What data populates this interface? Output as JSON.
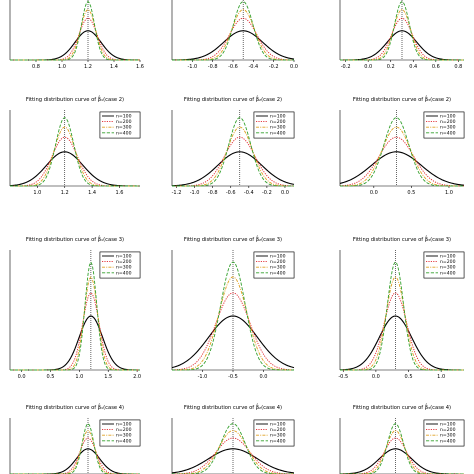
{
  "chart_data": {
    "type": "line",
    "layout": "4x3 grid of panels",
    "legend_position": "top-right",
    "grid": false,
    "rows": [
      {
        "row": 1,
        "title": "",
        "panels": [
          {
            "xlim": [
              0.6,
              1.6
            ],
            "xticks": [
              "0.8",
              "1.0",
              "1.2",
              "1.4",
              "1.6"
            ],
            "true_value": 1.2
          },
          {
            "xlim": [
              -1.2,
              0.0
            ],
            "xticks": [
              "-1.0",
              "-0.8",
              "-0.6",
              "-0.4",
              "-0.2",
              "0.0"
            ],
            "true_value": -0.5
          },
          {
            "xlim": [
              -0.25,
              0.85
            ],
            "xticks": [
              "-0.2",
              "0.0",
              "0.2",
              "0.4",
              "0.6",
              "0.8"
            ],
            "true_value": 0.3
          }
        ]
      },
      {
        "row": 2,
        "title": "Fitting distribution curve of β̂₁(case 2)",
        "titles": [
          "Fitting distribution curve of β̂₁(case 2)",
          "Fitting distribution curve of β̂₂(case 2)",
          "Fitting distribution curve of β̂₃(case 2)"
        ],
        "panels": [
          {
            "xlim": [
              0.8,
              1.75
            ],
            "xticks": [
              "1.0",
              "1.2",
              "1.4",
              "1.6"
            ],
            "true_value": 1.2
          },
          {
            "xlim": [
              -1.25,
              0.1
            ],
            "xticks": [
              "-1.2",
              "-1.0",
              "-0.8",
              "-0.6",
              "-0.4",
              "-0.2",
              "0.0"
            ],
            "true_value": -0.5
          },
          {
            "xlim": [
              -0.45,
              1.2
            ],
            "xticks": [
              "0.0",
              "0.5",
              "1.0"
            ],
            "true_value": 0.3
          }
        ]
      },
      {
        "row": 3,
        "titles": [
          "Fitting distribution curve of β̂₁(case 3)",
          "Fitting distribution curve of β̂₂(case 3)",
          "Fitting distribution curve of β̂₃(case 3)"
        ],
        "panels": [
          {
            "xlim": [
              -0.2,
              2.05
            ],
            "xticks": [
              "0.0",
              "0.5",
              "1.0",
              "1.5",
              "2.0"
            ],
            "true_value": 1.2
          },
          {
            "xlim": [
              -1.5,
              0.5
            ],
            "xticks": [
              "-1.0",
              "-0.5",
              "0.0"
            ],
            "true_value": -0.5
          },
          {
            "xlim": [
              -0.55,
              1.35
            ],
            "xticks": [
              "-0.5",
              "0.0",
              "0.5",
              "1.0"
            ],
            "true_value": 0.3
          }
        ]
      },
      {
        "row": 4,
        "titles": [
          "Fitting distribution curve of β̂₁(case 4)",
          "Fitting distribution curve of β̂₂(case 4)",
          "Fitting distribution curve of β̂₃(case 4)"
        ],
        "panels": [
          {
            "xlim": [
              0.0,
              2.0
            ],
            "xticks": [],
            "true_value": 1.2
          },
          {
            "xlim": [
              -1.5,
              0.5
            ],
            "xticks": [],
            "true_value": -0.5
          },
          {
            "xlim": [
              -0.55,
              1.35
            ],
            "xticks": [],
            "true_value": 0.3
          }
        ]
      }
    ],
    "series": [
      {
        "name": "n=100",
        "color": "#000000",
        "dash": "solid",
        "sd_factor": 1.0
      },
      {
        "name": "n=200",
        "color": "#e0232a",
        "dash": "dotted",
        "sd_factor": 0.7
      },
      {
        "name": "n=300",
        "color": "#e0a020",
        "dash": "dashdot",
        "sd_factor": 0.58
      },
      {
        "name": "n=400",
        "color": "#33a02c",
        "dash": "longdash",
        "sd_factor": 0.5
      }
    ],
    "curve_shape_note": "approximate density curves centered at true_value; n=100 widest, n=400 narrowest"
  }
}
